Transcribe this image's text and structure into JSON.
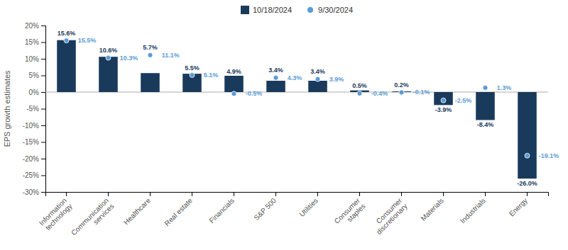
{
  "chart_data": {
    "type": "bar",
    "categories": [
      "Information\ntechnology",
      "Communication\nservices",
      "Healthcare",
      "Real estate",
      "Financials",
      "S&P 500",
      "Utilities",
      "Consumer\nstaples",
      "Consumer\ndiscretionary",
      "Materials",
      "Industrials",
      "Energy"
    ],
    "series": [
      {
        "name": "10/18/2024",
        "type": "bar",
        "color": "#1a3a5c",
        "values": [
          15.6,
          10.6,
          5.7,
          5.5,
          4.9,
          3.4,
          3.4,
          0.5,
          0.2,
          -3.9,
          -8.4,
          -26.0
        ],
        "value_labels": [
          "15.6%",
          "10.6%",
          "5.7%",
          "5.5%",
          "4.9%",
          "3.4%",
          "3.4%",
          "0.5%",
          "0.2%",
          "-3.9%",
          "-8.4%",
          "-26.0%"
        ]
      },
      {
        "name": "9/30/2024",
        "type": "scatter",
        "marker": "circle",
        "color": "#5b9bd5",
        "values": [
          15.5,
          10.3,
          11.1,
          5.1,
          -0.5,
          4.3,
          3.9,
          -0.4,
          -0.1,
          -2.5,
          1.3,
          -19.1
        ],
        "value_labels": [
          "15.5%",
          "10.3%",
          "11.1%",
          "5.1%",
          "-0.5%",
          "4.3%",
          "3.9%",
          "-0.4%",
          "-0.1%",
          "-2.5%",
          "1.3%",
          "-19.1%"
        ]
      }
    ],
    "ylabel": "EPS growth estimates",
    "ylim": [
      -30,
      20
    ],
    "yticks": [
      {
        "value": -30,
        "label": "-30%"
      },
      {
        "value": -25,
        "label": "-25%"
      },
      {
        "value": -20,
        "label": "-20%"
      },
      {
        "value": -15,
        "label": "-15%"
      },
      {
        "value": -10,
        "label": "-10%"
      },
      {
        "value": -5,
        "label": "-5%"
      },
      {
        "value": 0,
        "label": "0%"
      },
      {
        "value": 5,
        "label": "5%"
      },
      {
        "value": 10,
        "label": "10%"
      },
      {
        "value": 15,
        "label": "15%"
      },
      {
        "value": 20,
        "label": "20%"
      }
    ],
    "data_labels": true,
    "legend": "top",
    "grid": false
  }
}
